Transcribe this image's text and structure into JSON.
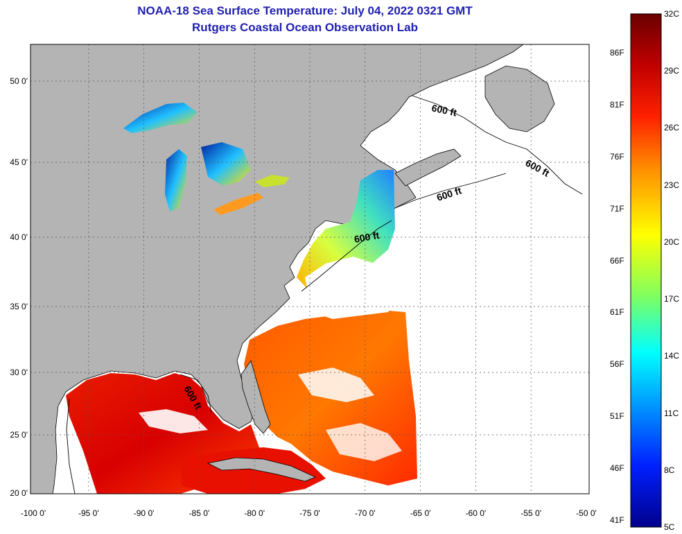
{
  "title": "NOAA-18 Sea Surface Temperature:  July 04, 2022 0321 GMT",
  "subtitle": "Rutgers Coastal Ocean Observation Lab",
  "map": {
    "lon_ticks": [
      "-100 0'",
      "-95 0'",
      "-90 0'",
      "-85 0'",
      "-80 0'",
      "-75 0'",
      "-70 0'",
      "-65 0'",
      "-60 0'",
      "-55 0'",
      "-50 0'"
    ],
    "lat_ticks": [
      "50 0'",
      "45 0'",
      "40 0'",
      "35 0'",
      "30 0'",
      "25 0'",
      "20 0'"
    ],
    "contour_labels": [
      "600 ft",
      "600 ft",
      "600 ft",
      "600 ft",
      "600 ft"
    ],
    "land_color": "#b4b4b4",
    "no_data_color": "#ffffff"
  },
  "colorbar": {
    "celsius_labels": [
      "32C",
      "29C",
      "26C",
      "23C",
      "20C",
      "17C",
      "14C",
      "11C",
      "8C",
      "5C"
    ],
    "fahrenheit_labels": [
      "86F",
      "81F",
      "76F",
      "71F",
      "66F",
      "61F",
      "56F",
      "51F",
      "46F",
      "41F"
    ],
    "colors": [
      "#6b0000",
      "#c00000",
      "#ff3c00",
      "#ff9600",
      "#ffff00",
      "#9cff4a",
      "#00ffff",
      "#009cff",
      "#0030ff",
      "#00008c"
    ]
  }
}
